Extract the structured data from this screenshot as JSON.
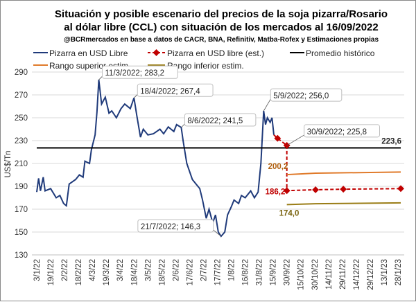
{
  "chart_data": {
    "type": "line",
    "title": "Situación y posible escenario del precios de la soja pizarra/Rosario",
    "title2": "al dólar libre (CCL) con situación de los mercados al 16/09/2022",
    "subtitle": "@BCRmercados en base a datos de CACR, BNA, Refinitiv, Matba-Rofex y Estimaciones propias",
    "ylabel": "US$/Tn",
    "ylim": [
      130,
      290
    ],
    "yticks": [
      "130",
      "150",
      "170",
      "190",
      "210",
      "230",
      "250",
      "270",
      "290"
    ],
    "xticks": [
      "3/1/22",
      "19/1/22",
      "2/2/22",
      "18/2/22",
      "4/3/22",
      "19/3/22",
      "3/4/22",
      "18/4/22",
      "3/5/22",
      "18/5/22",
      "2/6/22",
      "17/6/22",
      "2/7/22",
      "17/7/22",
      "1/8/22",
      "16/8/22",
      "31/8/22",
      "15/9/22",
      "30/9/22",
      "15/10/22",
      "30/10/22",
      "14/11/22",
      "29/11/22",
      "14/12/22",
      "29/12/22",
      "13/1/23",
      "28/1/23"
    ],
    "xrange": [
      "2022-01-03",
      "2023-01-28"
    ],
    "colors": {
      "blue": "#1f3a7a",
      "red": "#c00000",
      "black": "#000000",
      "orange": "#e07a2a",
      "olive": "#9a7d16"
    },
    "series": [
      {
        "name": "Pizarra en USD Libre",
        "color": "#1f3a7a",
        "points": [
          [
            "2022-01-03",
            185
          ],
          [
            "2022-01-05",
            197
          ],
          [
            "2022-01-07",
            186
          ],
          [
            "2022-01-10",
            198
          ],
          [
            "2022-01-12",
            186
          ],
          [
            "2022-01-18",
            188
          ],
          [
            "2022-01-24",
            180
          ],
          [
            "2022-01-28",
            182
          ],
          [
            "2022-02-01",
            175
          ],
          [
            "2022-02-04",
            173
          ],
          [
            "2022-02-07",
            192
          ],
          [
            "2022-02-14",
            196
          ],
          [
            "2022-02-18",
            200
          ],
          [
            "2022-02-22",
            198
          ],
          [
            "2022-02-24",
            212
          ],
          [
            "2022-03-01",
            210
          ],
          [
            "2022-03-03",
            222
          ],
          [
            "2022-03-07",
            235
          ],
          [
            "2022-03-09",
            255
          ],
          [
            "2022-03-11",
            283.2
          ],
          [
            "2022-03-14",
            262
          ],
          [
            "2022-03-18",
            268
          ],
          [
            "2022-03-22",
            254
          ],
          [
            "2022-03-25",
            256
          ],
          [
            "2022-03-30",
            250
          ],
          [
            "2022-04-04",
            258
          ],
          [
            "2022-04-08",
            262
          ],
          [
            "2022-04-14",
            258
          ],
          [
            "2022-04-18",
            267.4
          ],
          [
            "2022-04-21",
            252
          ],
          [
            "2022-04-25",
            233
          ],
          [
            "2022-04-28",
            240
          ],
          [
            "2022-05-03",
            235
          ],
          [
            "2022-05-09",
            236
          ],
          [
            "2022-05-16",
            240
          ],
          [
            "2022-05-20",
            236
          ],
          [
            "2022-05-25",
            242
          ],
          [
            "2022-05-31",
            238
          ],
          [
            "2022-06-03",
            244
          ],
          [
            "2022-06-08",
            241.5
          ],
          [
            "2022-06-10",
            230
          ],
          [
            "2022-06-14",
            210
          ],
          [
            "2022-06-20",
            196
          ],
          [
            "2022-06-24",
            192
          ],
          [
            "2022-06-28",
            188
          ],
          [
            "2022-07-01",
            178
          ],
          [
            "2022-07-05",
            162
          ],
          [
            "2022-07-08",
            170
          ],
          [
            "2022-07-12",
            158
          ],
          [
            "2022-07-15",
            165
          ],
          [
            "2022-07-18",
            150
          ],
          [
            "2022-07-21",
            146.3
          ],
          [
            "2022-07-25",
            150
          ],
          [
            "2022-07-28",
            165
          ],
          [
            "2022-08-01",
            172
          ],
          [
            "2022-08-04",
            178
          ],
          [
            "2022-08-09",
            175
          ],
          [
            "2022-08-12",
            182
          ],
          [
            "2022-08-16",
            180
          ],
          [
            "2022-08-22",
            186
          ],
          [
            "2022-08-26",
            180
          ],
          [
            "2022-08-30",
            185
          ],
          [
            "2022-09-02",
            210
          ],
          [
            "2022-09-05",
            256
          ],
          [
            "2022-09-07",
            244
          ],
          [
            "2022-09-09",
            250
          ],
          [
            "2022-09-12",
            246
          ],
          [
            "2022-09-14",
            250
          ],
          [
            "2022-09-16",
            235
          ]
        ]
      },
      {
        "name": "Pizarra en USD libre (est.)",
        "color": "#c00000",
        "dashed": true,
        "markers": true,
        "points": [
          [
            "2022-09-16",
            235
          ],
          [
            "2022-09-20",
            232
          ],
          [
            "2022-09-30",
            225.8
          ],
          [
            "2022-09-30",
            186.2
          ],
          [
            "2022-10-31",
            187
          ],
          [
            "2022-11-30",
            187.5
          ],
          [
            "2023-01-31",
            188
          ]
        ]
      },
      {
        "name": "Promedio histórico",
        "color": "#000000",
        "points": [
          [
            "2022-01-03",
            223.6
          ],
          [
            "2023-01-31",
            223.6
          ]
        ]
      },
      {
        "name": "Rango superior estim.",
        "color": "#e07a2a",
        "points": [
          [
            "2022-09-30",
            200.2
          ],
          [
            "2022-10-31",
            201.5
          ],
          [
            "2023-01-31",
            202.5
          ]
        ]
      },
      {
        "name": "Rango inferior estim.",
        "color": "#9a7d16",
        "points": [
          [
            "2022-09-30",
            174.0
          ],
          [
            "2022-10-31",
            174.8
          ],
          [
            "2023-01-31",
            175.5
          ]
        ]
      }
    ],
    "annotations": [
      {
        "text": "11/3/2022; 283,2",
        "date": "2022-03-11",
        "value": 283.2
      },
      {
        "text": "18/4/2022; 267,4",
        "date": "2022-04-18",
        "value": 267.4
      },
      {
        "text": "8/6/2022; 241,5",
        "date": "2022-06-08",
        "value": 241.5
      },
      {
        "text": "21/7/2022; 146,3",
        "date": "2022-07-21",
        "value": 146.3
      },
      {
        "text": "5/9/2022; 256,0",
        "date": "2022-09-05",
        "value": 256.0
      },
      {
        "text": "30/9/2022; 225,8",
        "date": "2022-09-30",
        "value": 225.8
      }
    ],
    "value_labels": {
      "avg": "223,6",
      "upper": "200,2",
      "est": "186,2",
      "lower": "174,0"
    }
  }
}
